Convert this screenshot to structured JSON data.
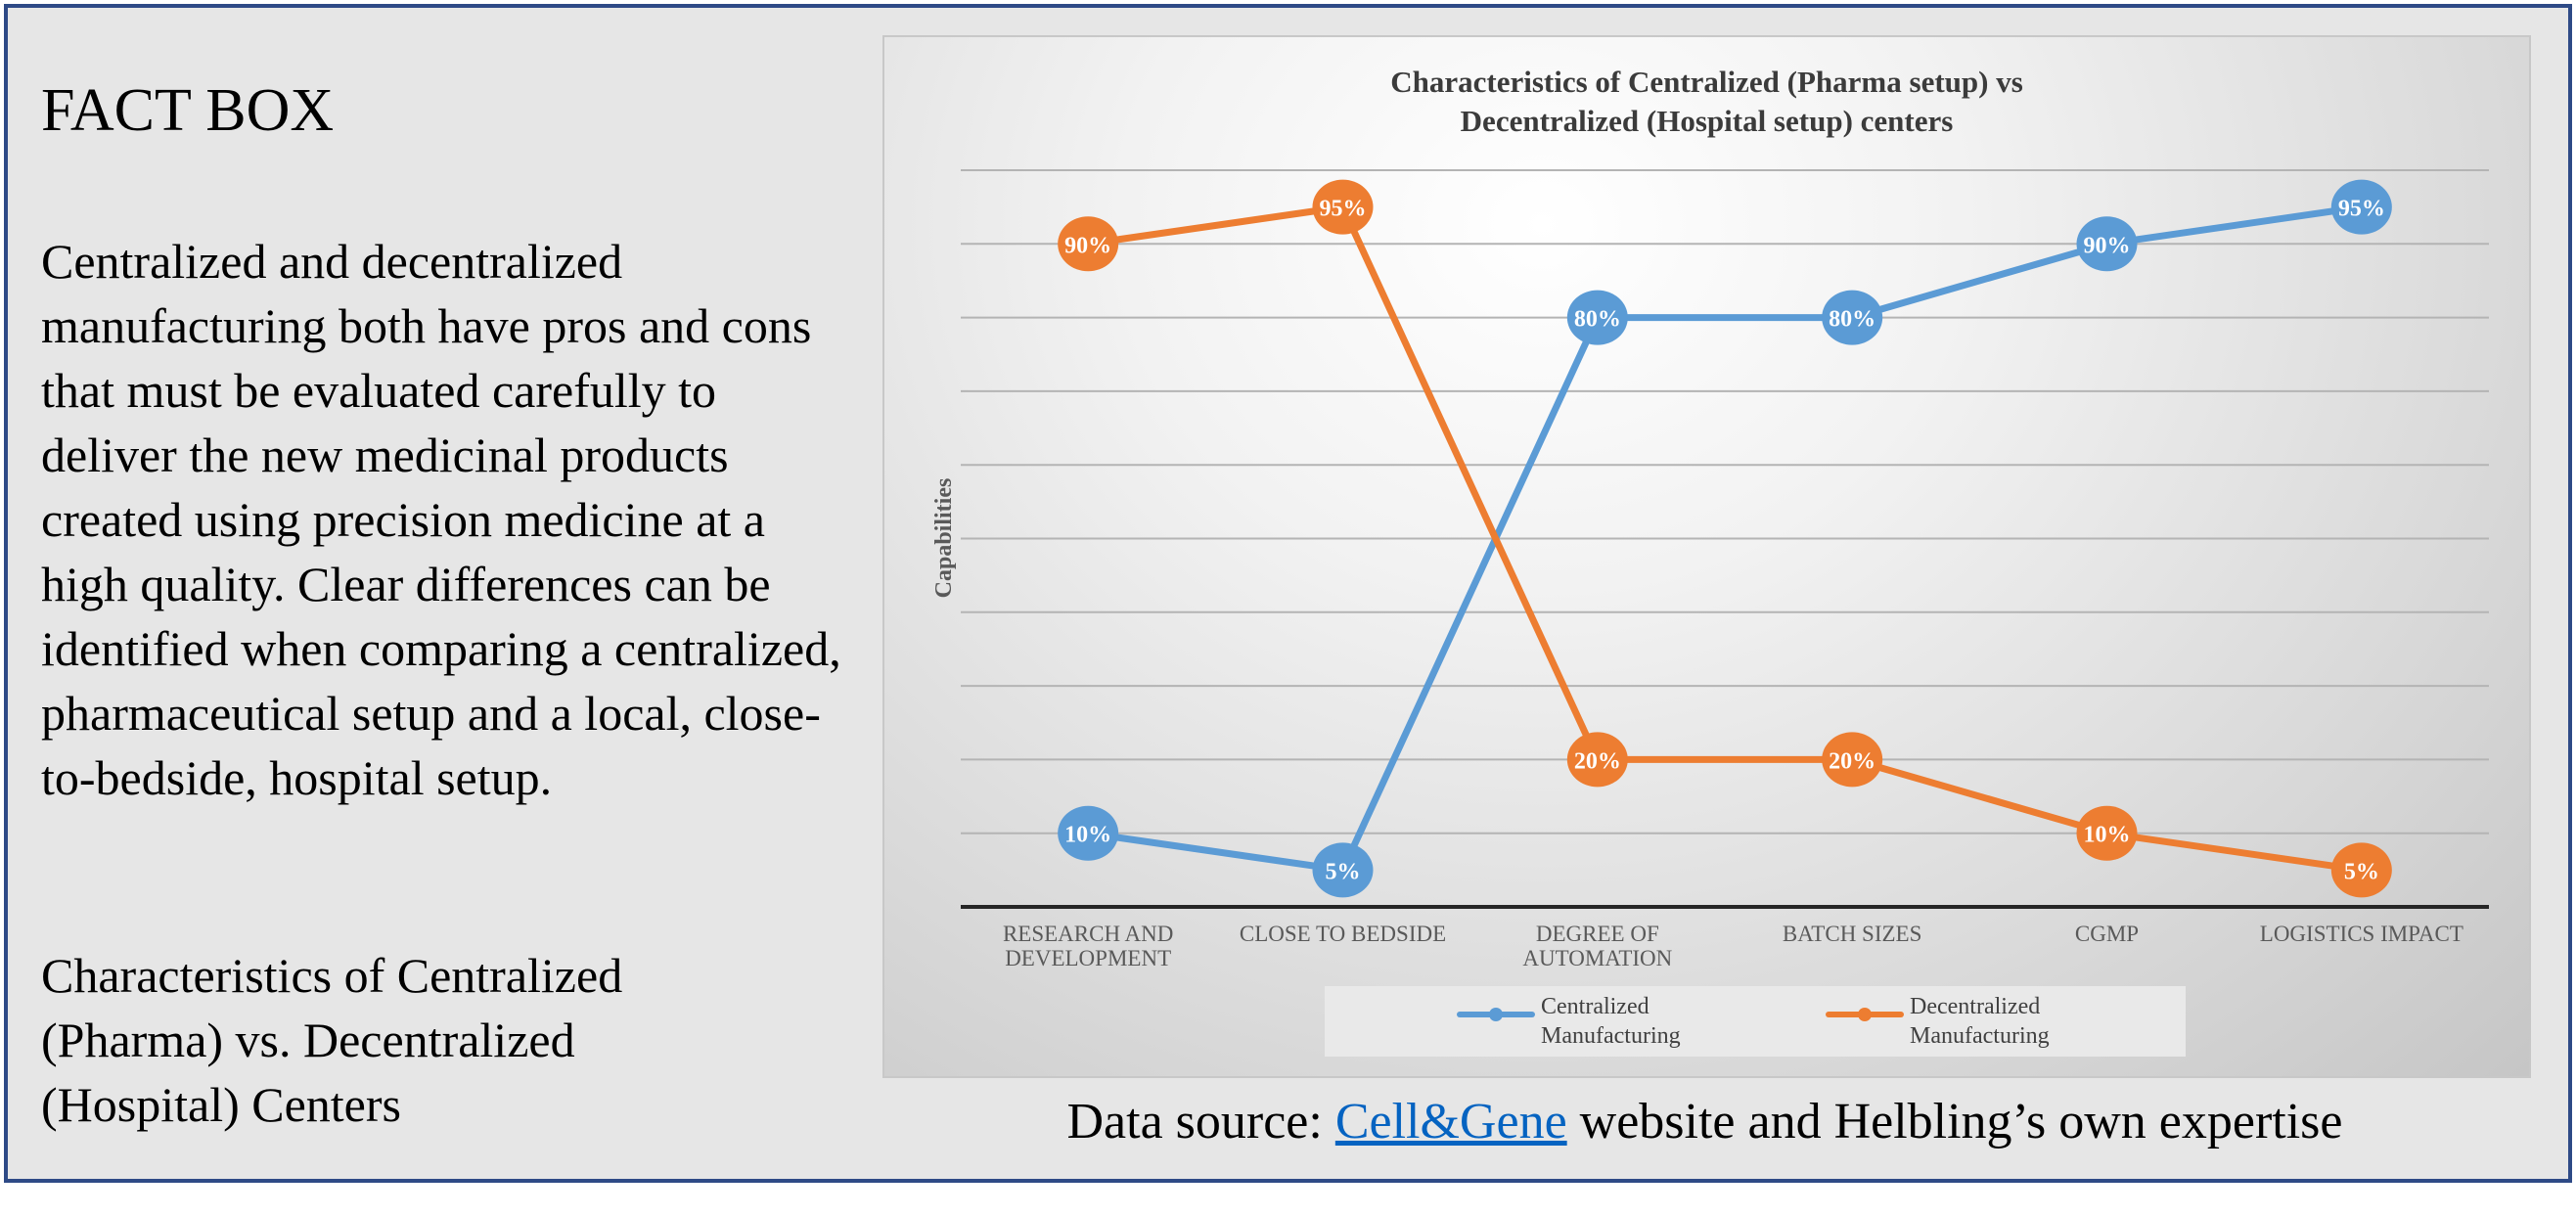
{
  "fact_box": {
    "title": "FACT BOX",
    "body": "Centralized and decentralized manufacturing both have pros and cons that must be evaluated carefully to deliver the new medicinal products created using precision medicine at a high quality. Clear differences can be identified when comparing a centralized, pharmaceutical setup and a local, close-to-bedside, hospital setup.",
    "subtitle": "Characteristics of Centralized (Pharma) vs. Decentralized (Hospital) Centers"
  },
  "chart_data": {
    "type": "line",
    "title_line1": "Characteristics of Centralized (Pharma setup) vs",
    "title_line2": "Decentralized (Hospital setup) centers",
    "ylabel": "Capabilities",
    "ylim": [
      0,
      100
    ],
    "grid": true,
    "legend_position": "bottom",
    "categories": [
      [
        "RESEARCH AND",
        "DEVELOPMENT"
      ],
      [
        "CLOSE TO BEDSIDE"
      ],
      [
        "DEGREE OF",
        "AUTOMATION"
      ],
      [
        "BATCH SIZES"
      ],
      [
        "CGMP"
      ],
      [
        "LOGISTICS IMPACT"
      ]
    ],
    "series": [
      {
        "name": "Centralized Manufacturing",
        "legend_lines": [
          "Centralized",
          "Manufacturing"
        ],
        "color": "#5b9bd5",
        "values": [
          10,
          5,
          80,
          80,
          90,
          95
        ],
        "labels": [
          "10%",
          "5%",
          "80%",
          "80%",
          "90%",
          "95%"
        ]
      },
      {
        "name": "Decentralized Manufacturing",
        "legend_lines": [
          "Decentralized",
          "Manufacturing"
        ],
        "color": "#ed7d31",
        "values": [
          90,
          95,
          20,
          20,
          10,
          5
        ],
        "labels": [
          "90%",
          "95%",
          "20%",
          "20%",
          "10%",
          "5%"
        ]
      }
    ]
  },
  "source": {
    "prefix": "Data source: ",
    "link_text": "Cell&Gene",
    "suffix": " website and Helbling’s own expertise"
  }
}
